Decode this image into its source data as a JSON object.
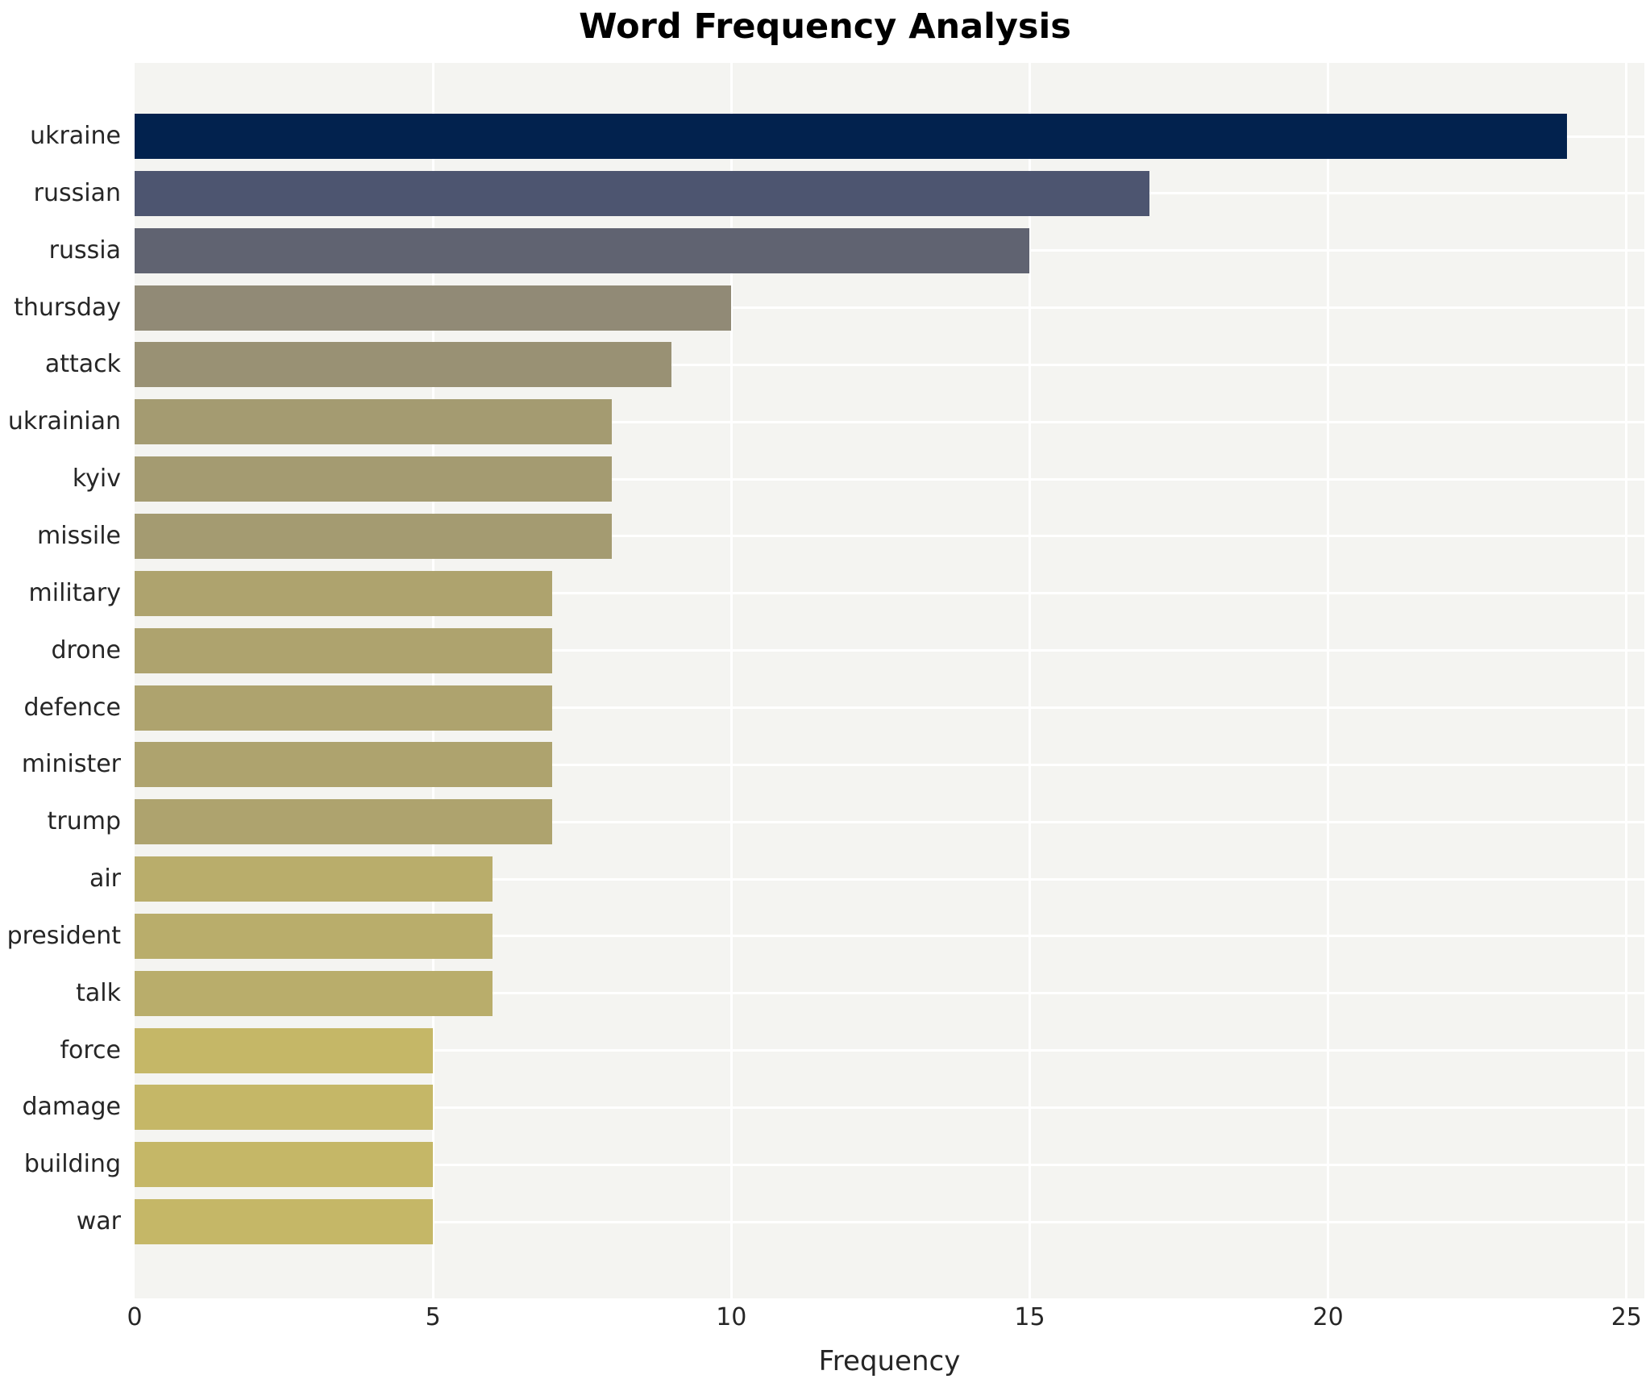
{
  "chart_data": {
    "type": "bar",
    "orientation": "horizontal",
    "title": "Word Frequency Analysis",
    "xlabel": "Frequency",
    "ylabel": "",
    "xlim": [
      0,
      25.3
    ],
    "x_ticks": [
      0,
      5,
      10,
      15,
      20,
      25
    ],
    "grid": "on",
    "legend": "none",
    "categories": [
      "ukraine",
      "russian",
      "russia",
      "thursday",
      "attack",
      "ukrainian",
      "kyiv",
      "missile",
      "military",
      "drone",
      "defence",
      "minister",
      "trump",
      "air",
      "president",
      "talk",
      "force",
      "damage",
      "building",
      "war"
    ],
    "values": [
      24,
      17,
      15,
      10,
      9,
      8,
      8,
      8,
      7,
      7,
      7,
      7,
      7,
      6,
      6,
      6,
      5,
      5,
      5,
      5
    ],
    "bar_colors": [
      "#02224e",
      "#4d5570",
      "#606371",
      "#918a76",
      "#999174",
      "#a49b71",
      "#a49b71",
      "#a49b71",
      "#aea36e",
      "#aea36e",
      "#aea36e",
      "#aea36e",
      "#aea36e",
      "#b9ad6b",
      "#b9ad6b",
      "#b9ad6b",
      "#c5b767",
      "#c5b767",
      "#c5b767",
      "#c5b767"
    ],
    "plot_bg_color": "#f4f4f1",
    "gridline_color": "#ffffff",
    "text_color": "#262626"
  }
}
